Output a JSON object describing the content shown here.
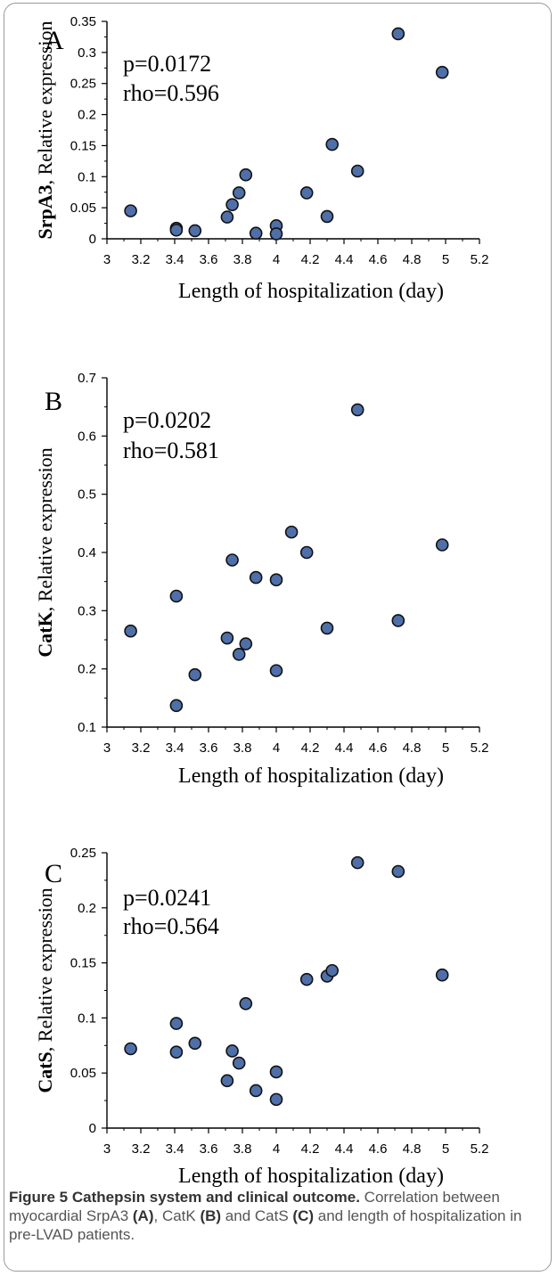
{
  "colors": {
    "marker_fill": "#4f6fa8",
    "marker_stroke": "#111111",
    "axis": "#000000",
    "caption_text": "#555555"
  },
  "chart_data": [
    {
      "type": "scatter",
      "panel_label": "A",
      "annotations": [
        "p=0.0172",
        "rho=0.596"
      ],
      "xlabel": "Length of hospitalization (day)",
      "ylabel_bold": "SrpA3",
      "ylabel_rest": ", Relative expression",
      "xlim": [
        3,
        5.2
      ],
      "ylim": [
        0,
        0.35
      ],
      "xticks": [
        "3",
        "3.2",
        "3.4",
        "3.6",
        "3.8",
        "4",
        "4.2",
        "4.4",
        "4.6",
        "4.8",
        "5",
        "5.2"
      ],
      "yticks": [
        "0",
        "0.05",
        "0.1",
        "0.15",
        "0.2",
        "0.25",
        "0.3",
        "0.35"
      ],
      "grid": false,
      "x": [
        3.14,
        3.41,
        3.41,
        3.52,
        3.71,
        3.74,
        3.78,
        3.82,
        3.88,
        4.0,
        4.0,
        4.18,
        4.3,
        4.33,
        4.48,
        4.72,
        4.98
      ],
      "y": [
        0.045,
        0.017,
        0.014,
        0.013,
        0.035,
        0.055,
        0.074,
        0.103,
        0.009,
        0.021,
        0.008,
        0.074,
        0.036,
        0.152,
        0.109,
        0.33,
        0.268
      ]
    },
    {
      "type": "scatter",
      "panel_label": "B",
      "annotations": [
        "p=0.0202",
        "rho=0.581"
      ],
      "xlabel": "Length of hospitalization (day)",
      "ylabel_bold": "CatK",
      "ylabel_rest": ", Relative expression",
      "xlim": [
        3,
        5.2
      ],
      "ylim": [
        0.1,
        0.7
      ],
      "xticks": [
        "3",
        "3.2",
        "3.4",
        "3.6",
        "3.8",
        "4",
        "4.2",
        "4.4",
        "4.6",
        "4.8",
        "5",
        "5.2"
      ],
      "yticks": [
        "0.1",
        "0.2",
        "0.3",
        "0.4",
        "0.5",
        "0.6",
        "0.7"
      ],
      "grid": false,
      "x": [
        3.14,
        3.41,
        3.41,
        3.52,
        3.71,
        3.74,
        3.78,
        3.82,
        3.88,
        4.0,
        4.0,
        4.09,
        4.18,
        4.3,
        4.48,
        4.72,
        4.98
      ],
      "y": [
        0.265,
        0.325,
        0.137,
        0.19,
        0.253,
        0.387,
        0.225,
        0.243,
        0.357,
        0.353,
        0.197,
        0.435,
        0.4,
        0.27,
        0.645,
        0.283,
        0.413
      ]
    },
    {
      "type": "scatter",
      "panel_label": "C",
      "annotations": [
        "p=0.0241",
        "rho=0.564"
      ],
      "xlabel": "Length of hospitalization (day)",
      "ylabel_bold": "CatS",
      "ylabel_rest": ", Relative expression",
      "xlim": [
        3,
        5.2
      ],
      "ylim": [
        0,
        0.25
      ],
      "xticks": [
        "3",
        "3.2",
        "3.4",
        "3.6",
        "3.8",
        "4",
        "4.2",
        "4.4",
        "4.6",
        "4.8",
        "5",
        "5.2"
      ],
      "yticks": [
        "0",
        "0.05",
        "0.1",
        "0.15",
        "0.2",
        "0.25"
      ],
      "grid": false,
      "x": [
        3.14,
        3.41,
        3.41,
        3.52,
        3.71,
        3.74,
        3.78,
        3.82,
        3.88,
        4.0,
        4.0,
        4.18,
        4.3,
        4.33,
        4.48,
        4.72,
        4.98
      ],
      "y": [
        0.072,
        0.095,
        0.069,
        0.077,
        0.043,
        0.07,
        0.059,
        0.113,
        0.034,
        0.051,
        0.026,
        0.135,
        0.138,
        0.143,
        0.241,
        0.233,
        0.139
      ]
    }
  ],
  "caption": {
    "figure_title": "Figure 5 Cathepsin system and clinical outcome.",
    "text_1": " Correlation between myocardial SrpA3 ",
    "label_a": "(A)",
    "text_2": ", CatK ",
    "label_b": "(B)",
    "text_3": " and CatS ",
    "label_c": "(C)",
    "text_4": " and length of hospitalization in pre-LVAD patients."
  }
}
